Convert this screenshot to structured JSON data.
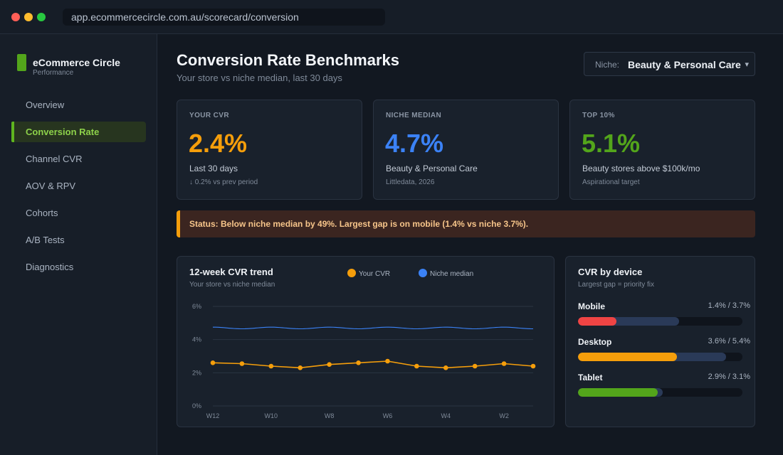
{
  "browser": {
    "url": "app.ecommercecircle.com.au/scorecard/conversion"
  },
  "brand": {
    "name": "eCommerce Circle",
    "subtitle": "Performance",
    "accent": "#53a51b"
  },
  "sidebar": {
    "items": [
      {
        "label": "Overview",
        "active": false
      },
      {
        "label": "Conversion Rate",
        "active": true
      },
      {
        "label": "Channel CVR",
        "active": false
      },
      {
        "label": "AOV & RPV",
        "active": false
      },
      {
        "label": "Cohorts",
        "active": false
      },
      {
        "label": "A/B Tests",
        "active": false
      },
      {
        "label": "Diagnostics",
        "active": false
      }
    ]
  },
  "header": {
    "title": "Conversion Rate Benchmarks",
    "subtitle": "Your store vs niche median, last 30 days",
    "niche_label": "Niche:",
    "niche_value": "Beauty & Personal Care",
    "niche_icon": "chevron-down-icon",
    "niche_chevron": "▾"
  },
  "kpis": [
    {
      "label": "YOUR CVR",
      "value": "2.4%",
      "desc": "Last 30 days",
      "note": "↓ 0.2% vs prev period",
      "color": "#f59e0b"
    },
    {
      "label": "NICHE MEDIAN",
      "value": "4.7%",
      "desc": "Beauty & Personal Care",
      "note": "Littledata, 2026",
      "color": "#3b82f6"
    },
    {
      "label": "TOP 10%",
      "value": "5.1%",
      "desc": "Beauty stores above $100k/mo",
      "note": "Aspirational target",
      "color": "#53a51b"
    }
  ],
  "status": {
    "text": "Status: Below niche median by 49%. Largest gap is on mobile (1.4% vs niche 3.7%).",
    "color": "#f59e0b"
  },
  "trend": {
    "title": "12-week CVR trend",
    "subtitle": "Your store vs niche median",
    "legend": [
      {
        "label": "Your CVR",
        "color": "#f59e0b"
      },
      {
        "label": "Niche median",
        "color": "#3b82f6"
      }
    ]
  },
  "devices": {
    "title": "CVR by device",
    "subtitle": "Largest gap = priority fix",
    "scale_max": 6,
    "items": [
      {
        "name": "Mobile",
        "vals": "1.4% / 3.7%",
        "yours": 1.4,
        "niche": 3.7,
        "color": "#ef4444"
      },
      {
        "name": "Desktop",
        "vals": "3.6% / 5.4%",
        "yours": 3.6,
        "niche": 5.4,
        "color": "#f59e0b"
      },
      {
        "name": "Tablet",
        "vals": "2.9% / 3.1%",
        "yours": 2.9,
        "niche": 3.1,
        "color": "#53a51b"
      }
    ]
  },
  "chart_data": {
    "type": "line",
    "title": "12-week CVR trend",
    "subtitle": "Your store vs niche median",
    "x": [
      "W12",
      "W11",
      "W10",
      "W9",
      "W8",
      "W7",
      "W6",
      "W5",
      "W4",
      "W3",
      "W2",
      "W1"
    ],
    "x_tick_labels": [
      "W12",
      "W10",
      "W8",
      "W6",
      "W4",
      "W2"
    ],
    "y_tick_labels": [
      "0%",
      "2%",
      "4%",
      "6%"
    ],
    "ylim": [
      0,
      6
    ],
    "grid": true,
    "legend_position": "top-center",
    "series": [
      {
        "name": "Your CVR",
        "color": "#f59e0b",
        "markers": true,
        "values": [
          2.6,
          2.55,
          2.4,
          2.3,
          2.5,
          2.6,
          2.7,
          2.4,
          2.3,
          2.4,
          2.55,
          2.4
        ]
      },
      {
        "name": "Niche median",
        "color": "#3b82f6",
        "markers": false,
        "values": [
          4.75,
          4.65,
          4.75,
          4.65,
          4.75,
          4.65,
          4.75,
          4.65,
          4.75,
          4.65,
          4.75,
          4.65
        ]
      }
    ]
  }
}
